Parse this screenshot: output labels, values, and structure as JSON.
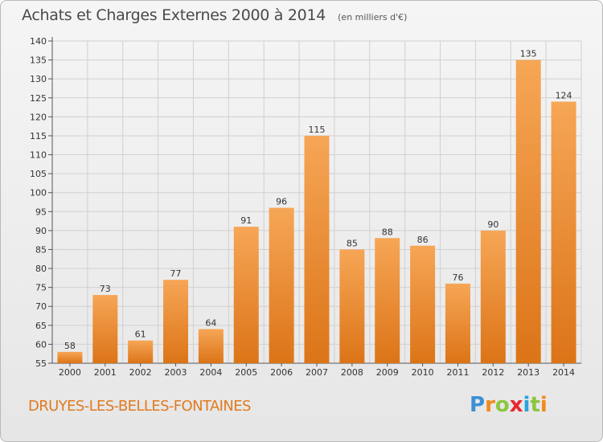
{
  "chart_data": {
    "type": "bar",
    "title": "Achats et Charges Externes 2000 à 2014",
    "unit_label": "(en milliers d'€)",
    "categories": [
      "2000",
      "2001",
      "2002",
      "2003",
      "2004",
      "2005",
      "2006",
      "2007",
      "2008",
      "2009",
      "2010",
      "2011",
      "2012",
      "2013",
      "2014"
    ],
    "values": [
      58,
      73,
      61,
      77,
      64,
      91,
      96,
      115,
      85,
      88,
      86,
      76,
      90,
      135,
      124
    ],
    "ylim": [
      55,
      140
    ],
    "yticks": [
      55,
      60,
      65,
      70,
      75,
      80,
      85,
      90,
      95,
      100,
      105,
      110,
      115,
      120,
      125,
      130,
      135,
      140
    ],
    "grid": true,
    "bar_color": "#f0922e"
  },
  "commune": "DRUYES-LES-BELLES-FONTAINES",
  "logo": {
    "letters": [
      "P",
      "r",
      "o",
      "x",
      "i",
      "t",
      "i"
    ],
    "colors": [
      "#3d8fd6",
      "#f08a1d",
      "#8cc63f",
      "#e8262e",
      "#2aa3de",
      "#8cc63f",
      "#f08a1d"
    ]
  }
}
